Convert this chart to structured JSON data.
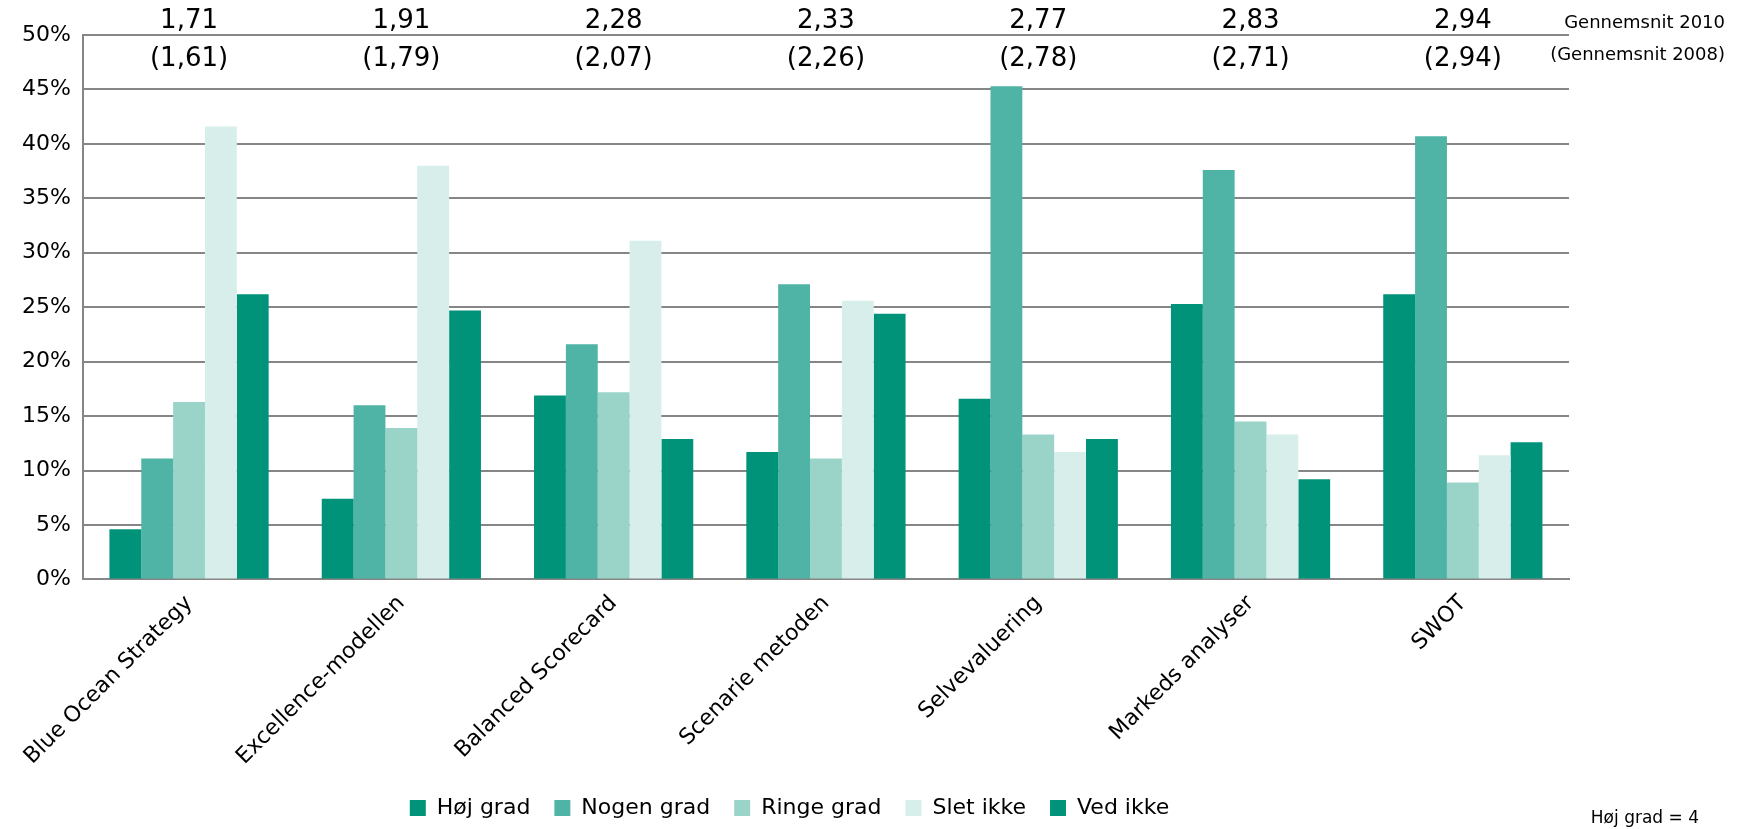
{
  "chart_data": {
    "type": "bar",
    "categories": [
      "Blue Ocean Strategy",
      "Excellence-modellen",
      "Balanced Scorecard",
      "Scenarie metoden",
      "Selvevaluering",
      "Markeds analyser",
      "SWOT"
    ],
    "series": [
      {
        "name": "Høj grad",
        "color": "#00937a",
        "values": [
          4.6,
          7.4,
          16.9,
          11.7,
          16.6,
          25.3,
          26.2
        ]
      },
      {
        "name": "Nogen grad",
        "color": "#4fb3a5",
        "values": [
          11.1,
          16.0,
          21.6,
          27.1,
          45.3,
          37.6,
          40.7
        ]
      },
      {
        "name": "Ringe grad",
        "color": "#9ad4c9",
        "values": [
          16.3,
          13.9,
          17.2,
          11.1,
          13.3,
          14.5,
          8.9
        ]
      },
      {
        "name": "Slet ikke",
        "color": "#d8eeea",
        "values": [
          41.6,
          38.0,
          31.1,
          25.6,
          11.7,
          13.3,
          11.4
        ]
      },
      {
        "name": "Ved ikke",
        "color": "#00937a",
        "values": [
          26.2,
          24.7,
          12.9,
          24.4,
          12.9,
          9.2,
          12.6
        ]
      }
    ],
    "ylim": [
      0,
      50
    ],
    "yticks": [
      {
        "value": 0,
        "label": "0%"
      },
      {
        "value": 5,
        "label": "5%"
      },
      {
        "value": 10,
        "label": "10%"
      },
      {
        "value": 15,
        "label": "15%"
      },
      {
        "value": 20,
        "label": "20%"
      },
      {
        "value": 25,
        "label": "25%"
      },
      {
        "value": 30,
        "label": "30%"
      },
      {
        "value": 35,
        "label": "35%"
      },
      {
        "value": 40,
        "label": "40%"
      },
      {
        "value": 45,
        "label": "45%"
      },
      {
        "value": 50,
        "label": "50%"
      }
    ],
    "grid": "y",
    "legend": "bottom",
    "annotations": [
      "1,71",
      "(1,61)",
      "1,91",
      "(1,79)",
      "2,28",
      "(2,07)",
      "2,33",
      "(2,26)",
      "2,77",
      "(2,78)",
      "2,83",
      "(2,71)",
      "2,94",
      "(2,94)",
      "Gennemsnit 2010",
      "(Gennemsnit 2008)",
      "Høj grad = 4"
    ]
  }
}
